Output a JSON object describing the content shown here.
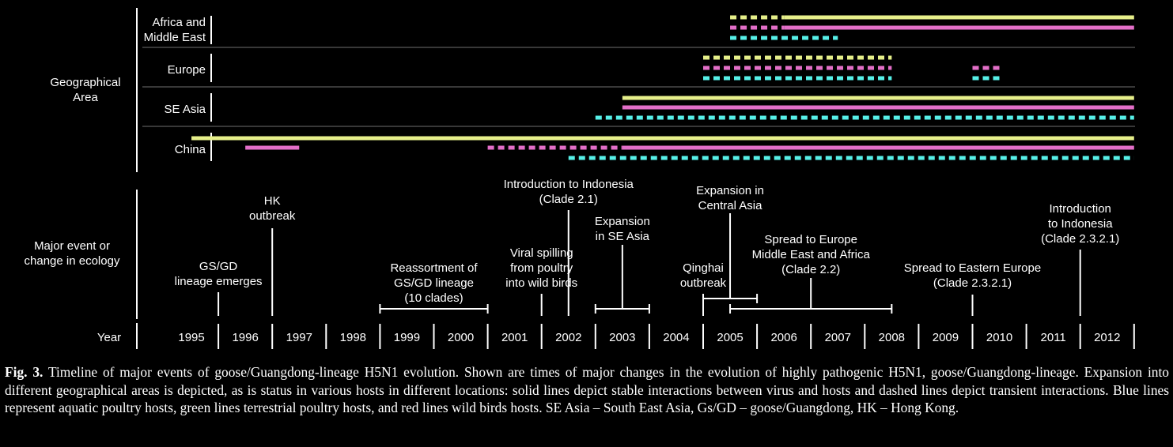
{
  "colors": {
    "background": "#000000",
    "text": "#ffffff",
    "terrestrial_poultry": "#e6ef8a",
    "wild_birds": "#e36fc8",
    "aquatic_poultry": "#57f0e8",
    "divider": "#5a5a5a"
  },
  "sections": {
    "geographical_area": [
      "Geographical",
      "Area"
    ],
    "major_event": [
      "Major event or",
      "change in ecology"
    ],
    "year": "Year"
  },
  "years": [
    "1995",
    "1996",
    "1997",
    "1998",
    "1999",
    "2000",
    "2001",
    "2002",
    "2003",
    "2004",
    "2005",
    "2006",
    "2007",
    "2008",
    "2009",
    "2010",
    "2011",
    "2012"
  ],
  "regions": [
    {
      "id": "africa-middle-east",
      "label": [
        "Africa and",
        "Middle East"
      ],
      "lines": [
        {
          "host": "terrestrial_poultry",
          "segments": [
            {
              "start": 2005.5,
              "end": 2006.5,
              "style": "dashed"
            },
            {
              "start": 2006.5,
              "end": 2013.0,
              "style": "solid"
            }
          ]
        },
        {
          "host": "wild_birds",
          "segments": [
            {
              "start": 2005.5,
              "end": 2006.5,
              "style": "dashed"
            },
            {
              "start": 2006.5,
              "end": 2013.0,
              "style": "solid"
            }
          ]
        },
        {
          "host": "aquatic_poultry",
          "segments": [
            {
              "start": 2005.5,
              "end": 2007.5,
              "style": "dashed"
            }
          ]
        }
      ]
    },
    {
      "id": "europe",
      "label": [
        "Europe"
      ],
      "lines": [
        {
          "host": "terrestrial_poultry",
          "segments": [
            {
              "start": 2005.0,
              "end": 2008.5,
              "style": "dashed"
            }
          ]
        },
        {
          "host": "wild_birds",
          "segments": [
            {
              "start": 2005.0,
              "end": 2008.5,
              "style": "dashed"
            },
            {
              "start": 2010.0,
              "end": 2010.5,
              "style": "dashed"
            }
          ]
        },
        {
          "host": "aquatic_poultry",
          "segments": [
            {
              "start": 2005.0,
              "end": 2008.5,
              "style": "dashed"
            },
            {
              "start": 2010.0,
              "end": 2010.5,
              "style": "dashed"
            }
          ]
        }
      ]
    },
    {
      "id": "se-asia",
      "label": [
        "SE Asia"
      ],
      "lines": [
        {
          "host": "terrestrial_poultry",
          "segments": [
            {
              "start": 2003.5,
              "end": 2013.0,
              "style": "solid"
            }
          ]
        },
        {
          "host": "wild_birds",
          "segments": [
            {
              "start": 2003.5,
              "end": 2013.0,
              "style": "solid"
            }
          ]
        },
        {
          "host": "aquatic_poultry",
          "segments": [
            {
              "start": 2003.0,
              "end": 2013.0,
              "style": "dashed"
            }
          ]
        }
      ]
    },
    {
      "id": "china",
      "label": [
        "China"
      ],
      "lines": [
        {
          "host": "terrestrial_poultry",
          "segments": [
            {
              "start": 1995.5,
              "end": 2013.0,
              "style": "solid"
            }
          ]
        },
        {
          "host": "wild_birds",
          "segments": [
            {
              "start": 1996.5,
              "end": 1997.5,
              "style": "solid"
            },
            {
              "start": 2001.0,
              "end": 2003.5,
              "style": "dashed"
            },
            {
              "start": 2003.5,
              "end": 2013.0,
              "style": "solid"
            }
          ]
        },
        {
          "host": "aquatic_poultry",
          "segments": [
            {
              "start": 2002.5,
              "end": 2013.0,
              "style": "dashed"
            }
          ]
        }
      ]
    }
  ],
  "events": [
    {
      "id": "gs-gd-lineage-emerges",
      "lines": [
        "GS/GD",
        "lineage emerges"
      ],
      "year": 1996.0
    },
    {
      "id": "hk-outbreak",
      "lines": [
        "HK",
        "outbreak"
      ],
      "year": 1997.0
    },
    {
      "id": "reassortment",
      "lines": [
        "Reassortment of",
        "GS/GD lineage",
        "(10 clades)"
      ],
      "range": [
        1999.0,
        2001.0
      ]
    },
    {
      "id": "viral-spilling",
      "lines": [
        "Viral spilling",
        "from poultry",
        "into wild birds"
      ],
      "year": 2002.0
    },
    {
      "id": "introduction-indonesia-2-1",
      "lines": [
        "Introduction to Indonesia",
        "(Clade 2.1)"
      ],
      "year": 2002.5
    },
    {
      "id": "expansion-se-asia",
      "lines": [
        "Expansion",
        "in SE Asia"
      ],
      "range": [
        2003.0,
        2004.0
      ]
    },
    {
      "id": "qinghai-outbreak",
      "lines": [
        "Qinghai",
        "outbreak"
      ],
      "year": 2005.0
    },
    {
      "id": "expansion-central-asia",
      "lines": [
        "Expansion in",
        "Central Asia"
      ],
      "range": [
        2005.0,
        2006.0
      ]
    },
    {
      "id": "spread-europe-africa",
      "lines": [
        "Spread to Europe",
        "Middle East and Africa",
        "(Clade 2.2)"
      ],
      "range": [
        2005.5,
        2008.5
      ]
    },
    {
      "id": "spread-eastern-europe",
      "lines": [
        "Spread to Eastern Europe",
        "(Clade 2.3.2.1)"
      ],
      "year": 2010.0
    },
    {
      "id": "introduction-indonesia-2-3-2-1",
      "lines": [
        "Introduction",
        "to Indonesia",
        "(Clade 2.3.2.1)"
      ],
      "year": 2012.0
    }
  ],
  "caption": {
    "label": "Fig. 3.",
    "text": "Timeline of major events of goose/Guangdong-lineage H5N1 evolution. Shown are times of major changes in the evolution of highly pathogenic H5N1, goose/Guangdong-lineage. Expansion into different geographical areas is depicted, as is status in various hosts in different locations: solid lines depict stable interactions between virus and hosts and dashed lines depict transient interactions. Blue lines represent aquatic poultry hosts, green lines terrestrial poultry hosts, and red lines wild birds hosts. SE Asia – South East Asia, Gs/GD – goose/Guangdong, HK – Hong Kong."
  }
}
